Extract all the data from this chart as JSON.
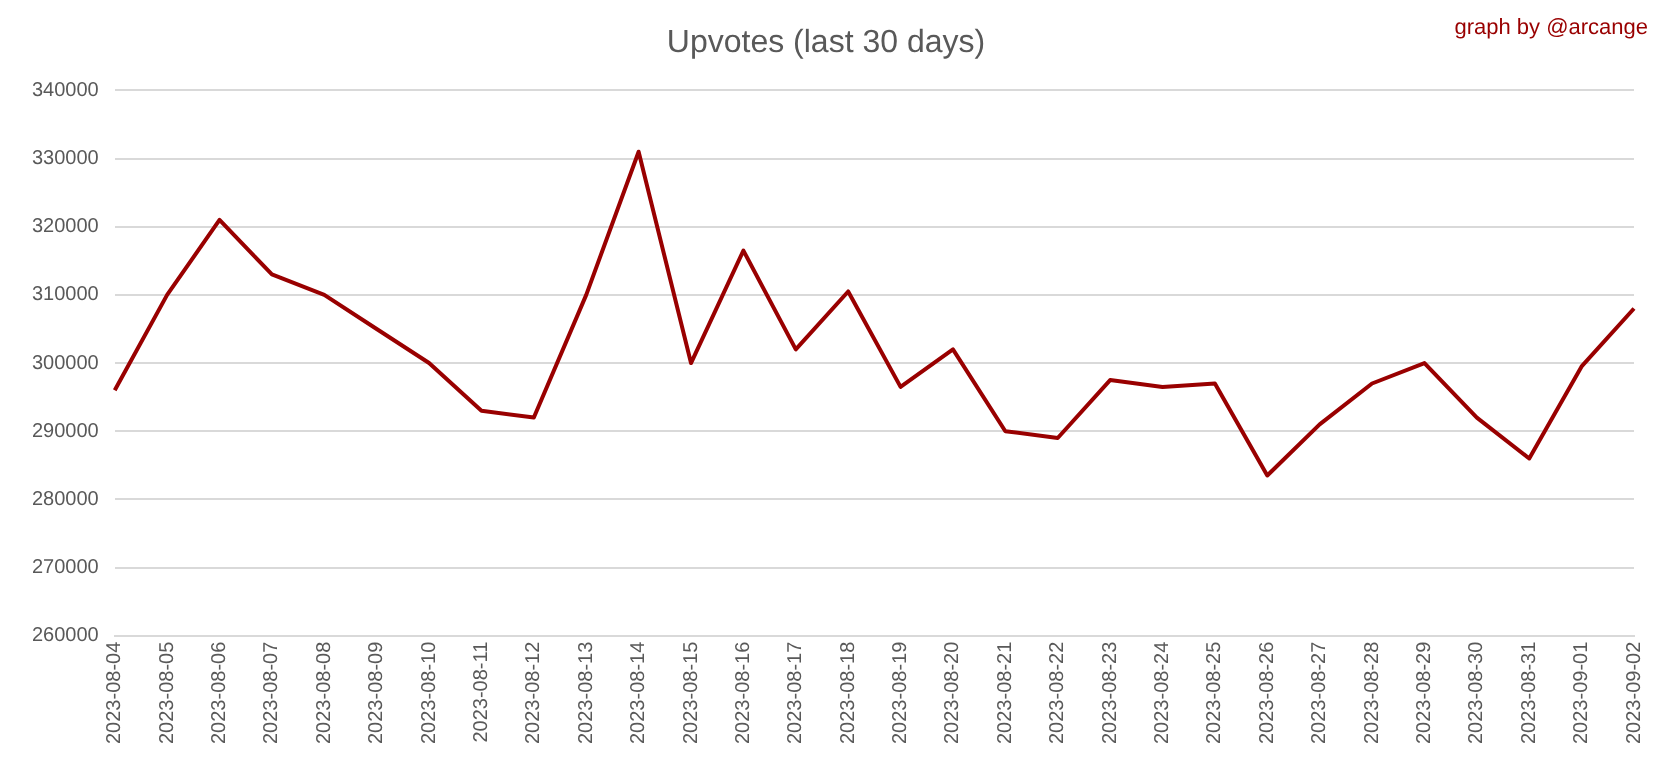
{
  "chart_data": {
    "type": "line",
    "title": "Upvotes (last 30 days)",
    "annotations": [
      "graph by @arcange"
    ],
    "categories": [
      "2023-08-04",
      "2023-08-05",
      "2023-08-06",
      "2023-08-07",
      "2023-08-08",
      "2023-08-09",
      "2023-08-10",
      "2023-08-11",
      "2023-08-12",
      "2023-08-13",
      "2023-08-14",
      "2023-08-15",
      "2023-08-16",
      "2023-08-17",
      "2023-08-18",
      "2023-08-19",
      "2023-08-20",
      "2023-08-21",
      "2023-08-22",
      "2023-08-23",
      "2023-08-24",
      "2023-08-25",
      "2023-08-26",
      "2023-08-27",
      "2023-08-28",
      "2023-08-29",
      "2023-08-30",
      "2023-08-31",
      "2023-09-01",
      "2023-09-02"
    ],
    "series": [
      {
        "color": "#990000",
        "values": [
          296000,
          310000,
          321000,
          313000,
          310000,
          305000,
          300000,
          293000,
          292000,
          310000,
          331000,
          300000,
          316500,
          302000,
          310500,
          296500,
          302000,
          290000,
          289000,
          297500,
          296500,
          297000,
          283500,
          291000,
          297000,
          300000,
          292000,
          286000,
          299500,
          308000
        ]
      }
    ],
    "ylim": [
      260000,
      340000
    ],
    "yticks": [
      260000,
      270000,
      280000,
      290000,
      300000,
      310000,
      320000,
      330000,
      340000
    ],
    "grid": "y",
    "legend": false,
    "marker": "none",
    "line_style": "solid"
  }
}
